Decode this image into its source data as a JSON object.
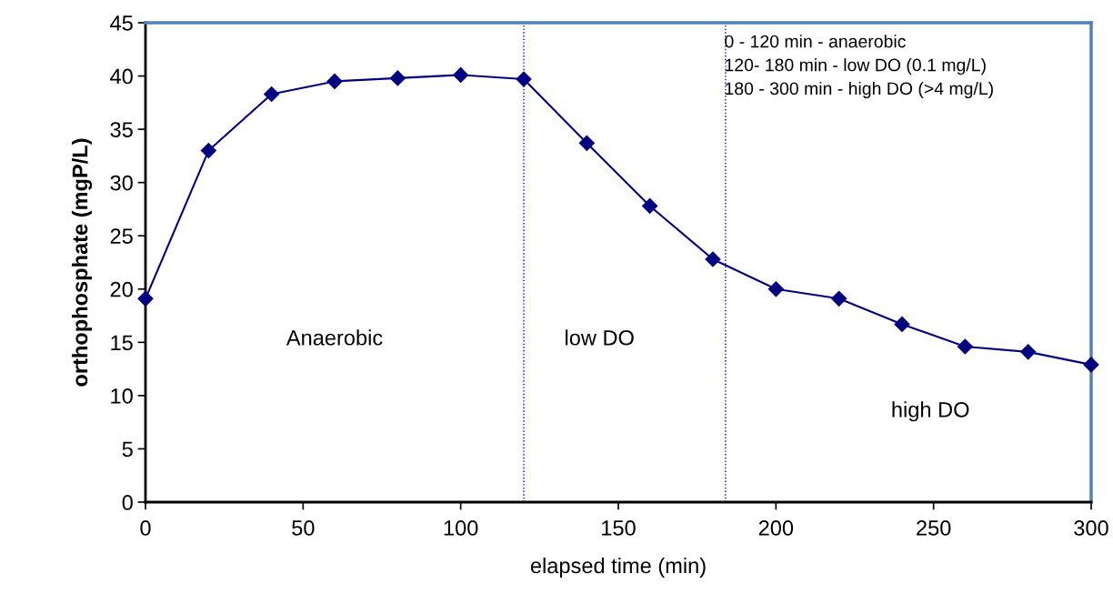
{
  "chart_data": {
    "type": "line",
    "xlabel": "elapsed time (min)",
    "ylabel": "orthophosphate (mgP/L)",
    "x": [
      0,
      20,
      40,
      60,
      80,
      100,
      120,
      140,
      160,
      180,
      200,
      220,
      240,
      260,
      280,
      300
    ],
    "series": [
      {
        "color": "#000080",
        "values": [
          19.1,
          33.0,
          38.3,
          39.5,
          39.8,
          40.1,
          39.7,
          33.7,
          27.8,
          22.8,
          20.0,
          19.1,
          16.7,
          14.6,
          14.1,
          12.9
        ]
      }
    ],
    "marker": "diamond",
    "line_style": "solid",
    "xlim": [
      0,
      300
    ],
    "xticks": [
      0,
      50,
      100,
      150,
      200,
      250,
      300
    ],
    "ylim": [
      0,
      45
    ],
    "yticks": [
      0,
      5,
      10,
      15,
      20,
      25,
      30,
      35,
      40,
      45
    ],
    "grid": false,
    "legend": false,
    "ref_lines": [
      {
        "axis": "x",
        "value": 120,
        "color": "#0000ff",
        "line_style": "dotted"
      },
      {
        "axis": "x",
        "value": 184,
        "color": "#0000ff",
        "line_style": "dotted"
      }
    ],
    "annotations": [
      "Anaerobic",
      "low DO",
      "high DO",
      "0 - 120 min - anaerobic\n120- 180 min - low DO (0.1 mg/L)\n180 - 300 min - high DO (>4 mg/L)"
    ]
  }
}
